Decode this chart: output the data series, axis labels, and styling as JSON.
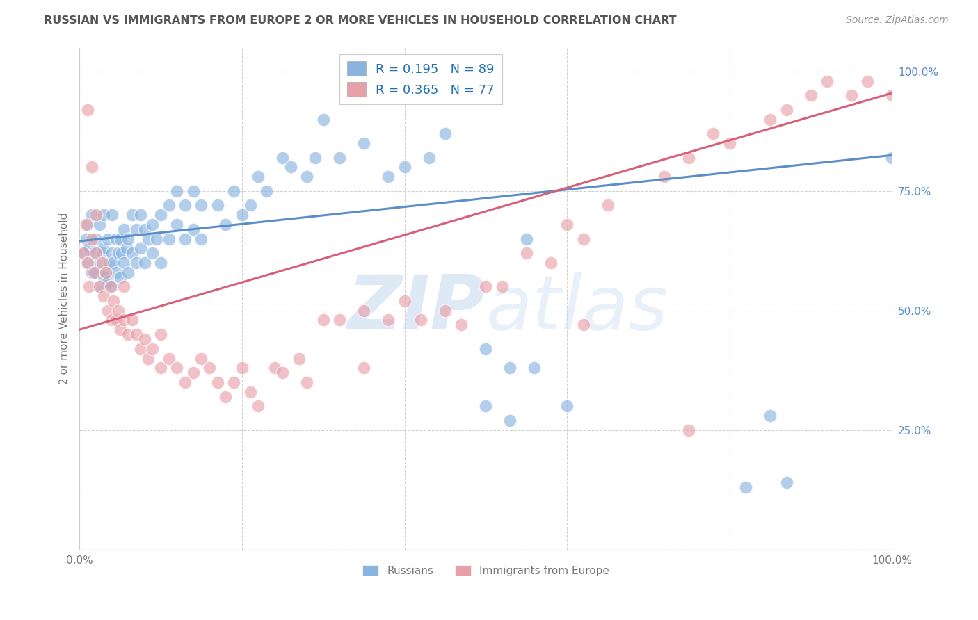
{
  "title": "RUSSIAN VS IMMIGRANTS FROM EUROPE 2 OR MORE VEHICLES IN HOUSEHOLD CORRELATION CHART",
  "source": "Source: ZipAtlas.com",
  "ylabel": "2 or more Vehicles in Household",
  "blue_R": 0.195,
  "blue_N": 89,
  "pink_R": 0.365,
  "pink_N": 77,
  "legend_label_blue": "Russians",
  "legend_label_pink": "Immigrants from Europe",
  "watermark_zip": "ZIP",
  "watermark_atlas": "atlas",
  "blue_color": "#8ab4e0",
  "pink_color": "#e8a0a8",
  "blue_line_color": "#5b8ec9",
  "pink_line_color": "#d95f78",
  "title_color": "#555555",
  "source_color": "#999999",
  "axis_label_color": "#777777",
  "ytick_color": "#5b8ec9",
  "legend_text_color": "#2171b5",
  "legend_N_color": "#cc0000",
  "blue_line_x0": 0.0,
  "blue_line_y0": 0.645,
  "blue_line_x1": 1.0,
  "blue_line_y1": 0.825,
  "pink_line_x0": 0.0,
  "pink_line_y0": 0.46,
  "pink_line_x1": 1.0,
  "pink_line_y1": 0.955,
  "xlim": [
    0.0,
    1.0
  ],
  "ylim": [
    0.0,
    1.05
  ],
  "xtick_vals": [
    0.0,
    0.2,
    0.4,
    0.6,
    0.8,
    1.0
  ],
  "ytick_vals": [
    0.0,
    0.25,
    0.5,
    0.75,
    1.0
  ],
  "ytick_labels": [
    "",
    "25.0%",
    "50.0%",
    "75.0%",
    "100.0%"
  ],
  "blue_x": [
    0.005,
    0.008,
    0.01,
    0.01,
    0.012,
    0.015,
    0.015,
    0.018,
    0.02,
    0.02,
    0.025,
    0.025,
    0.025,
    0.028,
    0.03,
    0.03,
    0.03,
    0.032,
    0.035,
    0.035,
    0.037,
    0.04,
    0.04,
    0.04,
    0.042,
    0.045,
    0.045,
    0.048,
    0.05,
    0.05,
    0.052,
    0.055,
    0.055,
    0.058,
    0.06,
    0.06,
    0.065,
    0.065,
    0.07,
    0.07,
    0.075,
    0.075,
    0.08,
    0.08,
    0.085,
    0.09,
    0.09,
    0.095,
    0.1,
    0.1,
    0.11,
    0.11,
    0.12,
    0.12,
    0.13,
    0.13,
    0.14,
    0.14,
    0.15,
    0.15,
    0.17,
    0.18,
    0.19,
    0.2,
    0.21,
    0.22,
    0.23,
    0.25,
    0.26,
    0.28,
    0.29,
    0.3,
    0.32,
    0.35,
    0.38,
    0.4,
    0.43,
    0.45,
    0.5,
    0.5,
    0.53,
    0.53,
    0.55,
    0.56,
    0.6,
    0.82,
    0.85,
    0.87,
    1.0
  ],
  "blue_y": [
    0.62,
    0.65,
    0.6,
    0.68,
    0.63,
    0.58,
    0.7,
    0.62,
    0.58,
    0.65,
    0.55,
    0.6,
    0.68,
    0.62,
    0.57,
    0.63,
    0.7,
    0.58,
    0.56,
    0.65,
    0.6,
    0.55,
    0.62,
    0.7,
    0.6,
    0.58,
    0.65,
    0.62,
    0.57,
    0.65,
    0.62,
    0.6,
    0.67,
    0.63,
    0.58,
    0.65,
    0.62,
    0.7,
    0.6,
    0.67,
    0.63,
    0.7,
    0.6,
    0.67,
    0.65,
    0.62,
    0.68,
    0.65,
    0.6,
    0.7,
    0.65,
    0.72,
    0.68,
    0.75,
    0.65,
    0.72,
    0.67,
    0.75,
    0.65,
    0.72,
    0.72,
    0.68,
    0.75,
    0.7,
    0.72,
    0.78,
    0.75,
    0.82,
    0.8,
    0.78,
    0.82,
    0.9,
    0.82,
    0.85,
    0.78,
    0.8,
    0.82,
    0.87,
    0.42,
    0.3,
    0.38,
    0.27,
    0.65,
    0.38,
    0.3,
    0.13,
    0.28,
    0.14,
    0.82
  ],
  "pink_x": [
    0.005,
    0.008,
    0.01,
    0.012,
    0.015,
    0.015,
    0.018,
    0.02,
    0.02,
    0.025,
    0.028,
    0.03,
    0.032,
    0.035,
    0.038,
    0.04,
    0.042,
    0.045,
    0.048,
    0.05,
    0.055,
    0.055,
    0.06,
    0.065,
    0.07,
    0.075,
    0.08,
    0.085,
    0.09,
    0.1,
    0.1,
    0.11,
    0.12,
    0.13,
    0.14,
    0.15,
    0.16,
    0.17,
    0.18,
    0.19,
    0.2,
    0.21,
    0.22,
    0.24,
    0.25,
    0.27,
    0.28,
    0.3,
    0.32,
    0.35,
    0.35,
    0.38,
    0.4,
    0.42,
    0.45,
    0.47,
    0.5,
    0.52,
    0.55,
    0.58,
    0.6,
    0.62,
    0.65,
    0.72,
    0.75,
    0.78,
    0.8,
    0.85,
    0.87,
    0.9,
    0.92,
    0.95,
    0.97,
    1.0,
    0.01,
    0.62,
    0.75
  ],
  "pink_y": [
    0.62,
    0.68,
    0.6,
    0.55,
    0.8,
    0.65,
    0.58,
    0.62,
    0.7,
    0.55,
    0.6,
    0.53,
    0.58,
    0.5,
    0.55,
    0.48,
    0.52,
    0.48,
    0.5,
    0.46,
    0.48,
    0.55,
    0.45,
    0.48,
    0.45,
    0.42,
    0.44,
    0.4,
    0.42,
    0.38,
    0.45,
    0.4,
    0.38,
    0.35,
    0.37,
    0.4,
    0.38,
    0.35,
    0.32,
    0.35,
    0.38,
    0.33,
    0.3,
    0.38,
    0.37,
    0.4,
    0.35,
    0.48,
    0.48,
    0.5,
    0.38,
    0.48,
    0.52,
    0.48,
    0.5,
    0.47,
    0.55,
    0.55,
    0.62,
    0.6,
    0.68,
    0.65,
    0.72,
    0.78,
    0.82,
    0.87,
    0.85,
    0.9,
    0.92,
    0.95,
    0.98,
    0.95,
    0.98,
    0.95,
    0.92,
    0.47,
    0.25
  ]
}
